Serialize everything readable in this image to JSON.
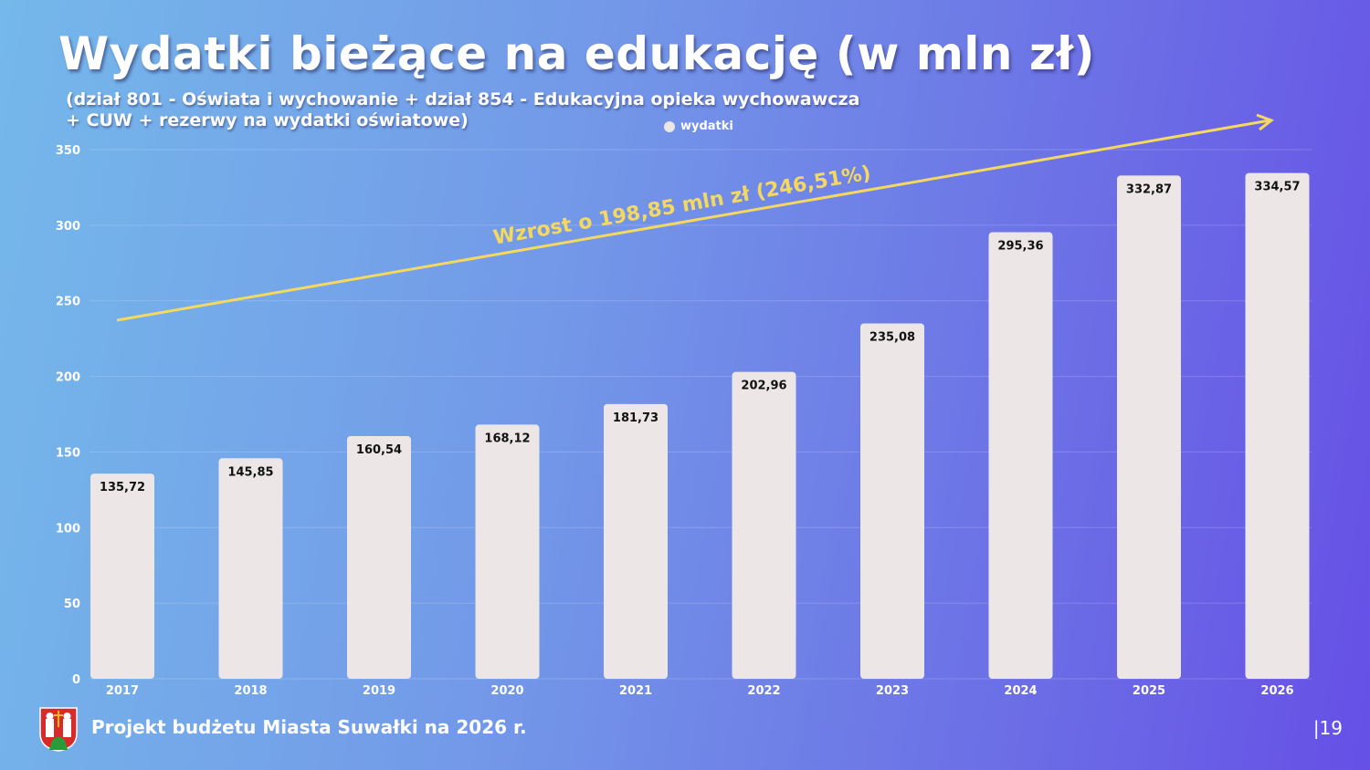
{
  "title": "Wydatki bieżące na edukację (w mln zł)",
  "subtitle_line1": "(dział 801 - Oświata i wychowanie + dział 854 - Edukacyjna opieka wychowawcza",
  "subtitle_line2": "+ CUW + rezerwy na wydatki oświatowe)",
  "footer": "Projekt budżetu Miasta Suwałki na 2026 r.",
  "page_number": "|19",
  "colors": {
    "bar": "#ece6e6",
    "trend": "#f5d860",
    "annotation": "#f5d860"
  },
  "chart_data": {
    "type": "bar",
    "categories": [
      "2017",
      "2018",
      "2019",
      "2020",
      "2021",
      "2022",
      "2023",
      "2024",
      "2025",
      "2026"
    ],
    "series": [
      {
        "name": "wydatki",
        "values": [
          135.72,
          145.85,
          160.54,
          168.12,
          181.73,
          202.96,
          235.08,
          295.36,
          332.87,
          334.57
        ]
      }
    ],
    "data_labels": [
      "135,72",
      "145,85",
      "160,54",
      "168,12",
      "181,73",
      "202,96",
      "235,08",
      "295,36",
      "332,87",
      "334,57"
    ],
    "ylim": [
      0,
      350
    ],
    "yticks": [
      0,
      50,
      100,
      150,
      200,
      250,
      300,
      350
    ],
    "grid": true,
    "legend": "top-center",
    "annotation": "Wzrost o 198,85 mln zł (246,51%)"
  }
}
